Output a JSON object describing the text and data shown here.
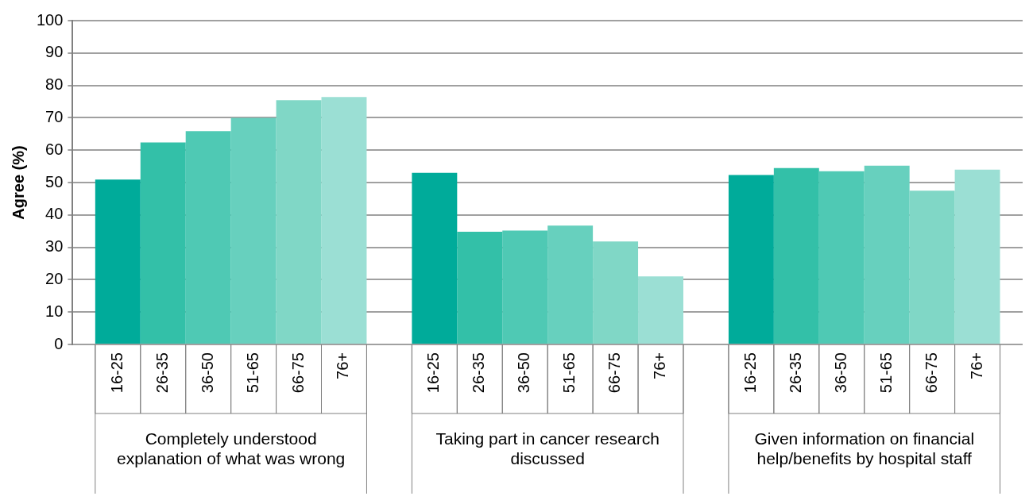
{
  "chart_data": {
    "type": "bar",
    "ylabel": "Agree (%)",
    "categories": [
      "Completely understood explanation of what was wrong",
      "Taking part in cancer research discussed",
      "Given information on financial help/benefits by hospital staff"
    ],
    "series": [
      {
        "name": "16-25",
        "color": "#00ab9a",
        "values": [
          50.9,
          53,
          52.3
        ]
      },
      {
        "name": "26-35",
        "color": "#33c0a8",
        "values": [
          62.4,
          34.8,
          54.5
        ]
      },
      {
        "name": "36-50",
        "color": "#4fc9b4",
        "values": [
          65.9,
          35.2,
          53.5
        ]
      },
      {
        "name": "51-65",
        "color": "#67d0be",
        "values": [
          70,
          36.7,
          55.2
        ]
      },
      {
        "name": "66-75",
        "color": "#80d7c6",
        "values": [
          75.4,
          31.8,
          47.5
        ]
      },
      {
        "name": "76+",
        "color": "#9bdfd4",
        "values": [
          76.4,
          21,
          54
        ]
      }
    ],
    "ylim": [
      0,
      100
    ],
    "yticks": [
      0,
      10,
      20,
      30,
      40,
      50,
      60,
      70,
      80,
      90,
      100
    ],
    "grid": "y",
    "legend": false
  }
}
